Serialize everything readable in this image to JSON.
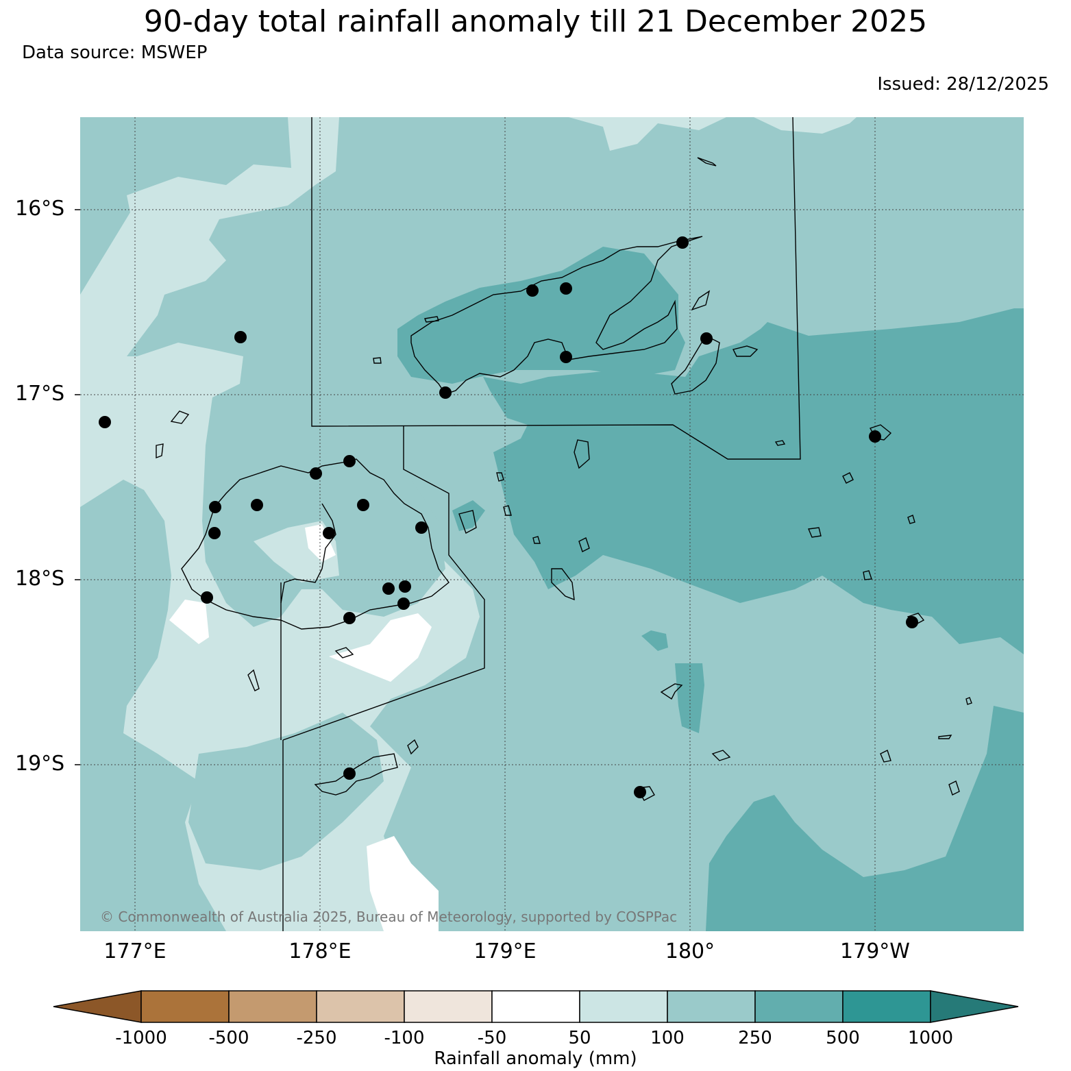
{
  "title": "90-day total rainfall anomaly till 21 December 2025",
  "data_source": "Data source: MSWEP",
  "issued": "Issued: 28/12/2025",
  "latitude_labels": [
    "16°S",
    "17°S",
    "18°S",
    "19°S"
  ],
  "longitude_labels": [
    "177°E",
    "178°E",
    "179°E",
    "180°",
    "179°W"
  ],
  "copyright": "© Commonwealth of Australia 2025, Bureau of Meteorology, supported by COSPPac",
  "colorbar": {
    "label": "Rainfall anomaly (mm)",
    "ticks": [
      "-1000",
      "-500",
      "-250",
      "-100",
      "-50",
      "50",
      "100",
      "250",
      "500",
      "1000"
    ],
    "colors": {
      "below_min": "#8c5728",
      "bins": [
        "#ab733a",
        "#c49a6f",
        "#dcc3aa",
        "#efe5dc",
        "#ffffff",
        "#cce5e4",
        "#9acaca",
        "#62aeae",
        "#2e9694"
      ],
      "above_max": "#267a78"
    }
  }
}
